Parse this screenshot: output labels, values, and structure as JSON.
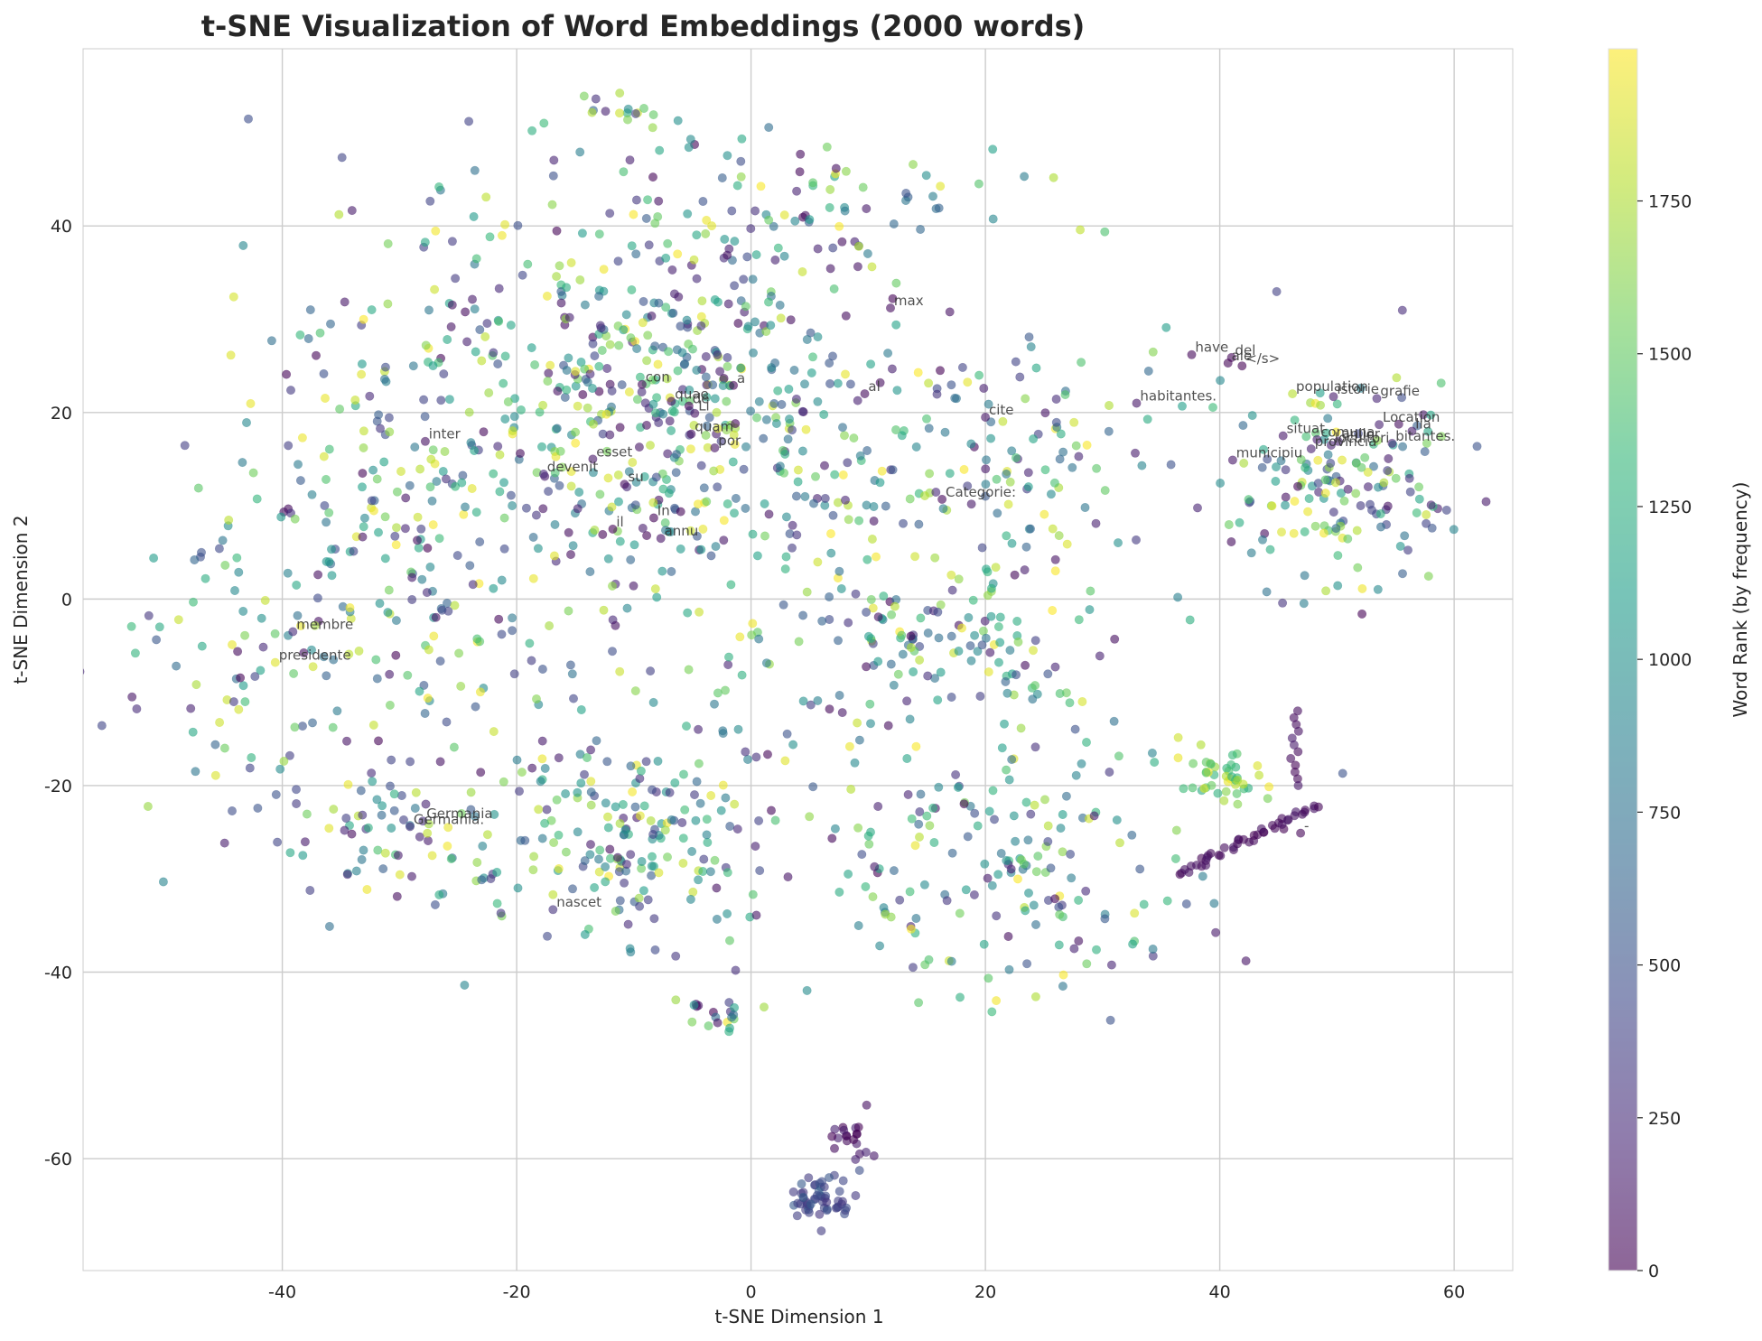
{
  "chart_data": {
    "type": "scatter",
    "title": "t-SNE Visualization of Word Embeddings (2000 words)",
    "xlabel": "t-SNE Dimension 1",
    "ylabel": "t-SNE Dimension 2",
    "xlim": [
      -57,
      65
    ],
    "ylim": [
      -72,
      59
    ],
    "xticks": [
      -40,
      -20,
      0,
      20,
      40,
      60
    ],
    "yticks": [
      -60,
      -40,
      -20,
      0,
      20,
      40
    ],
    "grid": true,
    "colorbar": {
      "label": "Word Rank (by frequency)",
      "colormap": "viridis",
      "range": [
        0,
        1999
      ],
      "ticks": [
        0,
        250,
        500,
        750,
        1000,
        1250,
        1500,
        1750
      ]
    },
    "point_count": 2000,
    "point_alpha": 0.6,
    "clusters": [
      {
        "cx": -8,
        "cy": 22,
        "sx": 10,
        "sy": 11,
        "n": 520,
        "rank": [
          0,
          1999
        ]
      },
      {
        "cx": -30,
        "cy": 8,
        "sx": 9,
        "sy": 14,
        "n": 260,
        "rank": [
          0,
          1999
        ]
      },
      {
        "cx": -45,
        "cy": -10,
        "sx": 5,
        "sy": 8,
        "n": 60,
        "rank": [
          0,
          1999
        ]
      },
      {
        "cx": -30,
        "cy": -25,
        "sx": 5,
        "sy": 4,
        "n": 70,
        "rank": [
          0,
          1999
        ]
      },
      {
        "cx": -10,
        "cy": -25,
        "sx": 7,
        "sy": 6,
        "n": 190,
        "rank": [
          0,
          1999
        ]
      },
      {
        "cx": 20,
        "cy": 14,
        "sx": 8,
        "sy": 8,
        "n": 150,
        "rank": [
          0,
          1999
        ]
      },
      {
        "cx": 17,
        "cy": -5,
        "sx": 6,
        "sy": 4,
        "n": 90,
        "rank": [
          0,
          1999
        ]
      },
      {
        "cx": 22,
        "cy": -30,
        "sx": 9,
        "sy": 7,
        "n": 170,
        "rank": [
          0,
          1999
        ]
      },
      {
        "cx": 50,
        "cy": 12,
        "sx": 5,
        "sy": 6,
        "n": 160,
        "rank": [
          0,
          1999
        ]
      },
      {
        "cx": 41,
        "cy": -19,
        "sx": 2,
        "sy": 1.5,
        "n": 40,
        "rank": [
          1200,
          1999
        ]
      },
      {
        "cx": 6,
        "cy": -64,
        "sx": 1.6,
        "sy": 1.3,
        "n": 55,
        "rank": [
          300,
          600
        ]
      },
      {
        "cx": 9,
        "cy": -58,
        "sx": 1,
        "sy": 1,
        "n": 20,
        "rank": [
          0,
          200
        ]
      },
      {
        "cx": -3,
        "cy": -44,
        "sx": 2,
        "sy": 1,
        "n": 20,
        "rank": [
          0,
          1999
        ]
      },
      {
        "cx": 0,
        "cy": 43,
        "sx": 14,
        "sy": 4,
        "n": 90,
        "rank": [
          0,
          1999
        ]
      },
      {
        "cx": -12,
        "cy": 52,
        "sx": 3,
        "sy": 1,
        "n": 15,
        "rank": [
          0,
          1999
        ]
      },
      {
        "cx": 10,
        "cy": -10,
        "sx": 12,
        "sy": 8,
        "n": 80,
        "rank": [
          0,
          1999
        ]
      }
    ],
    "trail": {
      "from": [
        36.5,
        -29.5
      ],
      "to": [
        48.3,
        -22
      ],
      "n": 45,
      "rank": [
        0,
        120
      ]
    },
    "trail_vertical": {
      "x": 46.5,
      "from": -12,
      "to": -20,
      "n": 12,
      "rank": [
        0,
        150
      ]
    },
    "annotations": [
      {
        "text": "max",
        "x": 12.2,
        "y": 31.5,
        "rank": 60
      },
      {
        "text": "have",
        "x": 37.9,
        "y": 26.5,
        "rank": 40
      },
      {
        "text": "del",
        "x": 41.3,
        "y": 26.2,
        "rank": 30
      },
      {
        "text": "ale",
        "x": 41.0,
        "y": 25.6,
        "rank": 20
      },
      {
        "text": "</s>",
        "x": 42.2,
        "y": 25.3,
        "rank": 0
      },
      {
        "text": "con",
        "x": -9.0,
        "y": 23.3,
        "rank": 45
      },
      {
        "text": "a",
        "x": -1.2,
        "y": 23.2,
        "rank": 5
      },
      {
        "text": "al",
        "x": 10.0,
        "y": 22.3,
        "rank": 50
      },
      {
        "text": "quae",
        "x": -6.5,
        "y": 21.5,
        "rank": 70
      },
      {
        "text": "de",
        "x": -5.0,
        "y": 21.0,
        "rank": 10
      },
      {
        "text": "Li",
        "x": -4.5,
        "y": 20.2,
        "rank": 90
      },
      {
        "text": "cite",
        "x": 20.3,
        "y": 19.8,
        "rank": 110
      },
      {
        "text": "habitantes.",
        "x": 33.2,
        "y": 21.3,
        "rank": 120
      },
      {
        "text": "population",
        "x": 46.5,
        "y": 22.3,
        "rank": 1780
      },
      {
        "text": "istorie",
        "x": 50.0,
        "y": 22.0,
        "rank": 150
      },
      {
        "text": "grafie",
        "x": 53.7,
        "y": 21.8,
        "rank": 200
      },
      {
        "text": "Location",
        "x": 53.9,
        "y": 19.0,
        "rank": 170
      },
      {
        "text": "lia",
        "x": 56.7,
        "y": 18.3,
        "rank": 140
      },
      {
        "text": "inter",
        "x": -27.5,
        "y": 17.2,
        "rank": 80
      },
      {
        "text": "quam",
        "x": -4.8,
        "y": 18.0,
        "rank": 95
      },
      {
        "text": "por",
        "x": -2.8,
        "y": 16.5,
        "rank": 100
      },
      {
        "text": "situat",
        "x": 45.7,
        "y": 17.8,
        "rank": 130
      },
      {
        "text": "comuna",
        "x": 48.6,
        "y": 17.4,
        "rank": 160
      },
      {
        "text": "locuitori",
        "x": 49.8,
        "y": 16.8,
        "rank": 180
      },
      {
        "text": "anilor",
        "x": 50.4,
        "y": 17.2,
        "rank": 190
      },
      {
        "text": "provincia",
        "x": 48.1,
        "y": 16.4,
        "rank": 175
      },
      {
        "text": "bitantes.",
        "x": 55.0,
        "y": 17.0,
        "rank": 210
      },
      {
        "text": "esset",
        "x": -13.2,
        "y": 15.3,
        "rank": 115
      },
      {
        "text": "municipiu",
        "x": 41.4,
        "y": 15.2,
        "rank": 125
      },
      {
        "text": "devenit",
        "x": -17.4,
        "y": 13.7,
        "rank": 230
      },
      {
        "text": "su",
        "x": -10.5,
        "y": 12.6,
        "rank": 55
      },
      {
        "text": "Categorie:",
        "x": 16.6,
        "y": 11.0,
        "rank": 35
      },
      {
        "text": "In",
        "x": -8.0,
        "y": 9.0,
        "rank": 25
      },
      {
        "text": "il",
        "x": -11.5,
        "y": 7.8,
        "rank": 15
      },
      {
        "text": "annu",
        "x": -7.4,
        "y": 6.8,
        "rank": 105
      },
      {
        "text": "membre",
        "x": -38.8,
        "y": -3.2,
        "rank": 240
      },
      {
        "text": "presidente",
        "x": -40.3,
        "y": -6.5,
        "rank": 1900
      },
      {
        "text": "Germania",
        "x": -27.7,
        "y": -23.5,
        "rank": 260
      },
      {
        "text": "Germania.",
        "x": -28.8,
        "y": -24.1,
        "rank": 280
      },
      {
        "text": "nascet",
        "x": -16.6,
        "y": -33.0,
        "rank": 290
      },
      {
        "text": "-",
        "x": 47.2,
        "y": -24.8,
        "rank": 20
      }
    ]
  }
}
